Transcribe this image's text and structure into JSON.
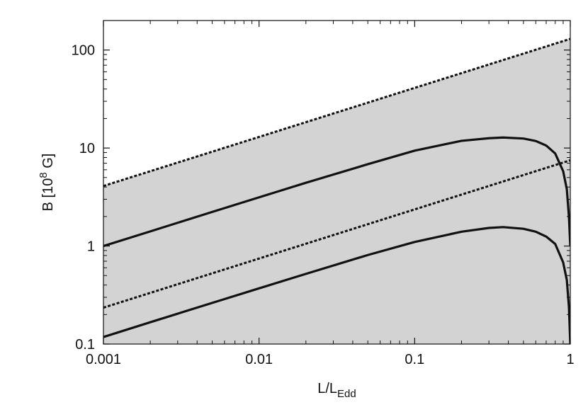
{
  "chart_data": {
    "type": "line",
    "title": "",
    "xlabel": {
      "main": "L/L",
      "sub": "Edd"
    },
    "ylabel": {
      "pre": "B [10",
      "sup": "8",
      "post": " G]"
    },
    "x_scale": "log",
    "y_scale": "log",
    "xlim": [
      0.001,
      1
    ],
    "ylim": [
      0.1,
      200
    ],
    "x_ticks": [
      {
        "value": 0.001,
        "label": "0.001"
      },
      {
        "value": 0.01,
        "label": "0.01"
      },
      {
        "value": 0.1,
        "label": "0.1"
      },
      {
        "value": 1,
        "label": "1"
      }
    ],
    "y_ticks": [
      {
        "value": 0.1,
        "label": "0.1"
      },
      {
        "value": 1,
        "label": "1"
      },
      {
        "value": 10,
        "label": "10"
      },
      {
        "value": 100,
        "label": "100"
      }
    ],
    "grid": false,
    "legend": "none",
    "shaded_band": {
      "color": "#d3d3d3",
      "lower": [
        [
          0.001,
          0.1
        ],
        [
          1,
          0.1
        ]
      ],
      "upper": [
        [
          0.001,
          4.1
        ],
        [
          1,
          130
        ]
      ]
    },
    "series": [
      {
        "style": "dotted",
        "color": "#111111",
        "points": [
          [
            0.001,
            4.1
          ],
          [
            1,
            130
          ]
        ]
      },
      {
        "style": "dotted",
        "color": "#111111",
        "points": [
          [
            0.001,
            0.235
          ],
          [
            1,
            7.5
          ]
        ]
      },
      {
        "style": "solid",
        "color": "#111111",
        "points": [
          [
            0.001,
            1.0
          ],
          [
            0.002,
            1.41
          ],
          [
            0.005,
            2.23
          ],
          [
            0.01,
            3.14
          ],
          [
            0.02,
            4.42
          ],
          [
            0.05,
            6.84
          ],
          [
            0.1,
            9.4
          ],
          [
            0.2,
            11.85
          ],
          [
            0.3,
            12.6
          ],
          [
            0.37,
            12.8
          ],
          [
            0.5,
            12.5
          ],
          [
            0.6,
            11.8
          ],
          [
            0.7,
            10.6
          ],
          [
            0.8,
            8.8
          ],
          [
            0.9,
            5.8
          ],
          [
            0.95,
            3.8
          ],
          [
            0.98,
            2.0
          ],
          [
            1,
            1.0
          ]
        ]
      },
      {
        "style": "solid",
        "color": "#111111",
        "points": [
          [
            0.001,
            0.118
          ],
          [
            0.002,
            0.167
          ],
          [
            0.005,
            0.263
          ],
          [
            0.01,
            0.37
          ],
          [
            0.02,
            0.52
          ],
          [
            0.05,
            0.81
          ],
          [
            0.1,
            1.1
          ],
          [
            0.2,
            1.4
          ],
          [
            0.3,
            1.53
          ],
          [
            0.37,
            1.56
          ],
          [
            0.5,
            1.5
          ],
          [
            0.6,
            1.4
          ],
          [
            0.7,
            1.25
          ],
          [
            0.8,
            1.05
          ],
          [
            0.9,
            0.68
          ],
          [
            0.95,
            0.45
          ],
          [
            0.98,
            0.24
          ],
          [
            1,
            0.1
          ]
        ]
      }
    ]
  }
}
